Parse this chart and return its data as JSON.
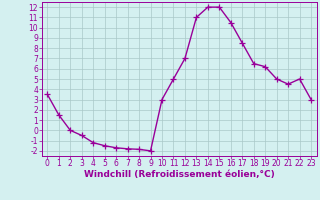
{
  "x": [
    0,
    1,
    2,
    3,
    4,
    5,
    6,
    7,
    8,
    9,
    10,
    11,
    12,
    13,
    14,
    15,
    16,
    17,
    18,
    19,
    20,
    21,
    22,
    23
  ],
  "y": [
    3.5,
    1.5,
    0.0,
    -0.5,
    -1.2,
    -1.5,
    -1.7,
    -1.8,
    -1.85,
    -2.0,
    3.0,
    5.0,
    7.0,
    11.0,
    12.0,
    12.0,
    10.5,
    8.5,
    6.5,
    6.2,
    5.0,
    4.5,
    5.0,
    3.0
  ],
  "color": "#990099",
  "bg_color": "#d4f0f0",
  "grid_color": "#aac8c8",
  "xlabel": "Windchill (Refroidissement éolien,°C)",
  "xlim": [
    -0.5,
    23.5
  ],
  "ylim": [
    -2.5,
    12.5
  ],
  "yticks": [
    -2,
    -1,
    0,
    1,
    2,
    3,
    4,
    5,
    6,
    7,
    8,
    9,
    10,
    11,
    12
  ],
  "xticks": [
    0,
    1,
    2,
    3,
    4,
    5,
    6,
    7,
    8,
    9,
    10,
    11,
    12,
    13,
    14,
    15,
    16,
    17,
    18,
    19,
    20,
    21,
    22,
    23
  ],
  "marker": "+",
  "linewidth": 1.0,
  "markersize": 4,
  "markeredgewidth": 0.9,
  "xlabel_fontsize": 6.5,
  "tick_fontsize": 5.5
}
